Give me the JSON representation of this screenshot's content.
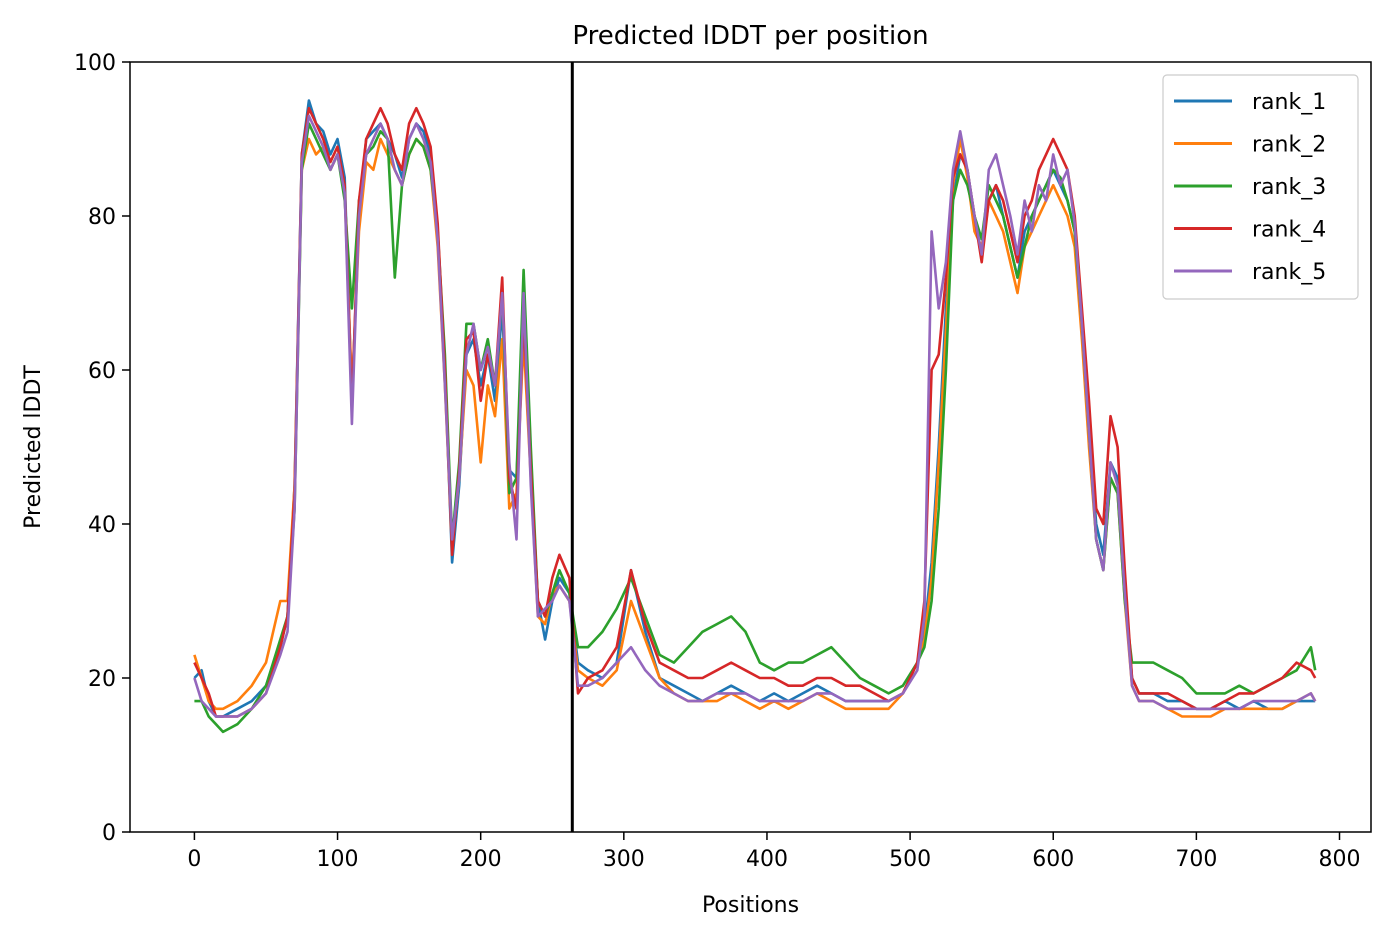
{
  "chart_data": {
    "type": "line",
    "title": "Predicted lDDT per position",
    "xlabel": "Positions",
    "ylabel": "Predicted lDDT",
    "xlim": [
      -45,
      822
    ],
    "ylim": [
      0,
      100
    ],
    "xticks": [
      0,
      100,
      200,
      300,
      400,
      500,
      600,
      700,
      800
    ],
    "yticks": [
      0,
      20,
      40,
      60,
      80,
      100
    ],
    "vline_x": 264,
    "legend_position": "top-right",
    "grid": false,
    "series": [
      {
        "name": "rank_1",
        "color": "#1f77b4",
        "x": [
          0,
          5,
          10,
          15,
          20,
          30,
          40,
          50,
          60,
          65,
          70,
          75,
          80,
          85,
          90,
          95,
          100,
          105,
          110,
          115,
          120,
          125,
          130,
          135,
          140,
          145,
          150,
          155,
          160,
          165,
          170,
          175,
          180,
          185,
          190,
          195,
          200,
          205,
          210,
          215,
          220,
          225,
          230,
          235,
          240,
          245,
          250,
          255,
          262,
          268,
          275,
          285,
          295,
          305,
          315,
          325,
          335,
          345,
          355,
          365,
          375,
          385,
          395,
          405,
          415,
          425,
          435,
          445,
          455,
          465,
          475,
          485,
          495,
          505,
          510,
          515,
          520,
          525,
          530,
          535,
          540,
          545,
          550,
          555,
          560,
          565,
          570,
          575,
          580,
          585,
          590,
          595,
          600,
          605,
          610,
          615,
          620,
          625,
          630,
          635,
          640,
          645,
          650,
          655,
          660,
          670,
          680,
          690,
          700,
          710,
          720,
          730,
          740,
          750,
          760,
          770,
          780,
          783
        ],
        "values": [
          20,
          21,
          17,
          15,
          15,
          16,
          17,
          19,
          24,
          28,
          45,
          88,
          95,
          92,
          91,
          88,
          90,
          85,
          56,
          80,
          90,
          91,
          92,
          90,
          88,
          85,
          90,
          92,
          91,
          88,
          78,
          60,
          35,
          45,
          62,
          64,
          58,
          62,
          56,
          68,
          47,
          46,
          67,
          48,
          30,
          25,
          30,
          33,
          31,
          22,
          21,
          20,
          22,
          34,
          26,
          20,
          19,
          18,
          17,
          18,
          19,
          18,
          17,
          18,
          17,
          18,
          19,
          18,
          17,
          17,
          17,
          17,
          18,
          22,
          26,
          35,
          50,
          68,
          82,
          88,
          86,
          80,
          75,
          82,
          84,
          80,
          76,
          72,
          78,
          80,
          82,
          84,
          86,
          84,
          82,
          78,
          65,
          52,
          40,
          36,
          48,
          46,
          32,
          20,
          18,
          18,
          17,
          17,
          16,
          16,
          17,
          16,
          17,
          16,
          16,
          17,
          17,
          17
        ]
      },
      {
        "name": "rank_2",
        "color": "#ff7f0e",
        "x": [
          0,
          5,
          10,
          15,
          20,
          30,
          40,
          50,
          60,
          65,
          70,
          75,
          80,
          85,
          90,
          95,
          100,
          105,
          110,
          115,
          120,
          125,
          130,
          135,
          140,
          145,
          150,
          155,
          160,
          165,
          170,
          175,
          180,
          185,
          190,
          195,
          200,
          205,
          210,
          215,
          220,
          225,
          230,
          235,
          240,
          245,
          250,
          255,
          262,
          268,
          275,
          285,
          295,
          305,
          315,
          325,
          335,
          345,
          355,
          365,
          375,
          385,
          395,
          405,
          415,
          425,
          435,
          445,
          455,
          465,
          475,
          485,
          495,
          505,
          510,
          515,
          520,
          525,
          530,
          535,
          540,
          545,
          550,
          555,
          560,
          565,
          570,
          575,
          580,
          585,
          590,
          595,
          600,
          605,
          610,
          615,
          620,
          625,
          630,
          635,
          640,
          645,
          650,
          655,
          660,
          670,
          680,
          690,
          700,
          710,
          720,
          730,
          740,
          750,
          760,
          770,
          780,
          783
        ],
        "values": [
          23,
          20,
          17,
          16,
          16,
          17,
          19,
          22,
          30,
          30,
          45,
          86,
          90,
          88,
          89,
          86,
          88,
          83,
          57,
          78,
          87,
          86,
          90,
          88,
          86,
          84,
          88,
          90,
          89,
          86,
          76,
          58,
          37,
          46,
          60,
          58,
          48,
          58,
          54,
          64,
          42,
          44,
          64,
          46,
          28,
          27,
          31,
          32,
          30,
          21,
          20,
          19,
          21,
          30,
          25,
          20,
          18,
          17,
          17,
          17,
          18,
          17,
          16,
          17,
          16,
          17,
          18,
          17,
          16,
          16,
          16,
          16,
          18,
          22,
          25,
          33,
          48,
          65,
          84,
          90,
          85,
          78,
          76,
          82,
          80,
          78,
          74,
          70,
          76,
          78,
          80,
          82,
          84,
          82,
          80,
          76,
          64,
          50,
          38,
          34,
          46,
          44,
          30,
          19,
          17,
          17,
          16,
          15,
          15,
          15,
          16,
          16,
          16,
          16,
          16,
          17,
          18,
          17
        ]
      },
      {
        "name": "rank_3",
        "color": "#2ca02c",
        "x": [
          0,
          5,
          10,
          15,
          20,
          30,
          40,
          50,
          60,
          65,
          70,
          75,
          80,
          85,
          90,
          95,
          100,
          105,
          110,
          115,
          120,
          125,
          130,
          135,
          140,
          145,
          150,
          155,
          160,
          165,
          170,
          175,
          180,
          185,
          190,
          195,
          200,
          205,
          210,
          215,
          220,
          225,
          230,
          235,
          240,
          245,
          250,
          255,
          262,
          268,
          275,
          285,
          295,
          305,
          315,
          325,
          335,
          345,
          355,
          365,
          375,
          385,
          395,
          405,
          415,
          425,
          435,
          445,
          455,
          465,
          475,
          485,
          495,
          505,
          510,
          515,
          520,
          525,
          530,
          535,
          540,
          545,
          550,
          555,
          560,
          565,
          570,
          575,
          580,
          585,
          590,
          595,
          600,
          605,
          610,
          615,
          620,
          625,
          630,
          635,
          640,
          645,
          650,
          655,
          660,
          670,
          680,
          690,
          700,
          710,
          720,
          730,
          740,
          750,
          760,
          770,
          780,
          783
        ],
        "values": [
          17,
          17,
          15,
          14,
          13,
          14,
          16,
          19,
          25,
          28,
          42,
          86,
          92,
          90,
          88,
          86,
          88,
          82,
          68,
          82,
          88,
          89,
          91,
          90,
          72,
          84,
          88,
          90,
          89,
          86,
          78,
          62,
          38,
          48,
          66,
          66,
          60,
          64,
          58,
          70,
          44,
          46,
          73,
          50,
          30,
          28,
          31,
          34,
          31,
          24,
          24,
          26,
          29,
          33,
          28,
          23,
          22,
          24,
          26,
          27,
          28,
          26,
          22,
          21,
          22,
          22,
          23,
          24,
          22,
          20,
          19,
          18,
          19,
          22,
          24,
          30,
          42,
          60,
          82,
          86,
          84,
          80,
          77,
          84,
          82,
          80,
          76,
          72,
          76,
          80,
          82,
          84,
          86,
          85,
          82,
          78,
          66,
          52,
          38,
          34,
          46,
          44,
          30,
          22,
          22,
          22,
          21,
          20,
          18,
          18,
          18,
          19,
          18,
          19,
          20,
          21,
          24,
          21
        ]
      },
      {
        "name": "rank_4",
        "color": "#d62728",
        "x": [
          0,
          5,
          10,
          15,
          20,
          30,
          40,
          50,
          60,
          65,
          70,
          75,
          80,
          85,
          90,
          95,
          100,
          105,
          110,
          115,
          120,
          125,
          130,
          135,
          140,
          145,
          150,
          155,
          160,
          165,
          170,
          175,
          180,
          185,
          190,
          195,
          200,
          205,
          210,
          215,
          220,
          225,
          230,
          235,
          240,
          245,
          250,
          255,
          262,
          268,
          275,
          285,
          295,
          305,
          315,
          325,
          335,
          345,
          355,
          365,
          375,
          385,
          395,
          405,
          415,
          425,
          435,
          445,
          455,
          465,
          475,
          485,
          495,
          505,
          510,
          515,
          520,
          525,
          530,
          535,
          540,
          545,
          550,
          555,
          560,
          565,
          570,
          575,
          580,
          585,
          590,
          595,
          600,
          605,
          610,
          615,
          620,
          625,
          630,
          635,
          640,
          645,
          650,
          655,
          660,
          670,
          680,
          690,
          700,
          710,
          720,
          730,
          740,
          750,
          760,
          770,
          780,
          783
        ],
        "values": [
          22,
          20,
          18,
          15,
          15,
          15,
          16,
          18,
          24,
          28,
          44,
          88,
          94,
          92,
          90,
          87,
          89,
          84,
          55,
          82,
          90,
          92,
          94,
          92,
          88,
          86,
          92,
          94,
          92,
          89,
          79,
          60,
          36,
          47,
          64,
          65,
          56,
          62,
          58,
          72,
          46,
          42,
          67,
          47,
          30,
          28,
          33,
          36,
          33,
          18,
          20,
          21,
          24,
          34,
          27,
          22,
          21,
          20,
          20,
          21,
          22,
          21,
          20,
          20,
          19,
          19,
          20,
          20,
          19,
          19,
          18,
          17,
          18,
          22,
          30,
          60,
          62,
          72,
          85,
          88,
          86,
          80,
          74,
          82,
          84,
          82,
          78,
          74,
          80,
          82,
          86,
          88,
          90,
          88,
          86,
          80,
          68,
          56,
          42,
          40,
          54,
          50,
          34,
          20,
          18,
          18,
          18,
          17,
          16,
          16,
          17,
          18,
          18,
          19,
          20,
          22,
          21,
          20
        ]
      },
      {
        "name": "rank_5",
        "color": "#9467bd",
        "x": [
          0,
          5,
          10,
          15,
          20,
          30,
          40,
          50,
          60,
          65,
          70,
          75,
          80,
          85,
          90,
          95,
          100,
          105,
          110,
          115,
          120,
          125,
          130,
          135,
          140,
          145,
          150,
          155,
          160,
          165,
          170,
          175,
          180,
          185,
          190,
          195,
          200,
          205,
          210,
          215,
          220,
          225,
          230,
          235,
          240,
          245,
          250,
          255,
          262,
          268,
          275,
          285,
          295,
          305,
          315,
          325,
          335,
          345,
          355,
          365,
          375,
          385,
          395,
          405,
          415,
          425,
          435,
          445,
          455,
          465,
          475,
          485,
          495,
          505,
          510,
          515,
          520,
          525,
          530,
          535,
          540,
          545,
          550,
          555,
          560,
          565,
          570,
          575,
          580,
          585,
          590,
          595,
          600,
          605,
          610,
          615,
          620,
          625,
          630,
          635,
          640,
          645,
          650,
          655,
          660,
          670,
          680,
          690,
          700,
          710,
          720,
          730,
          740,
          750,
          760,
          770,
          780,
          783
        ],
        "values": [
          20,
          17,
          16,
          15,
          15,
          15,
          16,
          18,
          23,
          26,
          42,
          87,
          93,
          91,
          89,
          86,
          88,
          83,
          53,
          80,
          88,
          90,
          92,
          90,
          86,
          84,
          90,
          92,
          90,
          87,
          77,
          58,
          38,
          46,
          62,
          66,
          60,
          63,
          58,
          70,
          48,
          38,
          70,
          45,
          28,
          29,
          30,
          32,
          30,
          19,
          19,
          20,
          22,
          24,
          21,
          19,
          18,
          17,
          17,
          18,
          18,
          18,
          17,
          17,
          17,
          17,
          18,
          18,
          17,
          17,
          17,
          17,
          18,
          21,
          28,
          78,
          68,
          74,
          86,
          91,
          86,
          80,
          75,
          86,
          88,
          84,
          80,
          75,
          82,
          78,
          84,
          82,
          88,
          84,
          86,
          79,
          66,
          52,
          38,
          34,
          48,
          45,
          31,
          19,
          17,
          17,
          16,
          16,
          16,
          16,
          16,
          16,
          17,
          17,
          17,
          17,
          18,
          17
        ]
      }
    ]
  }
}
